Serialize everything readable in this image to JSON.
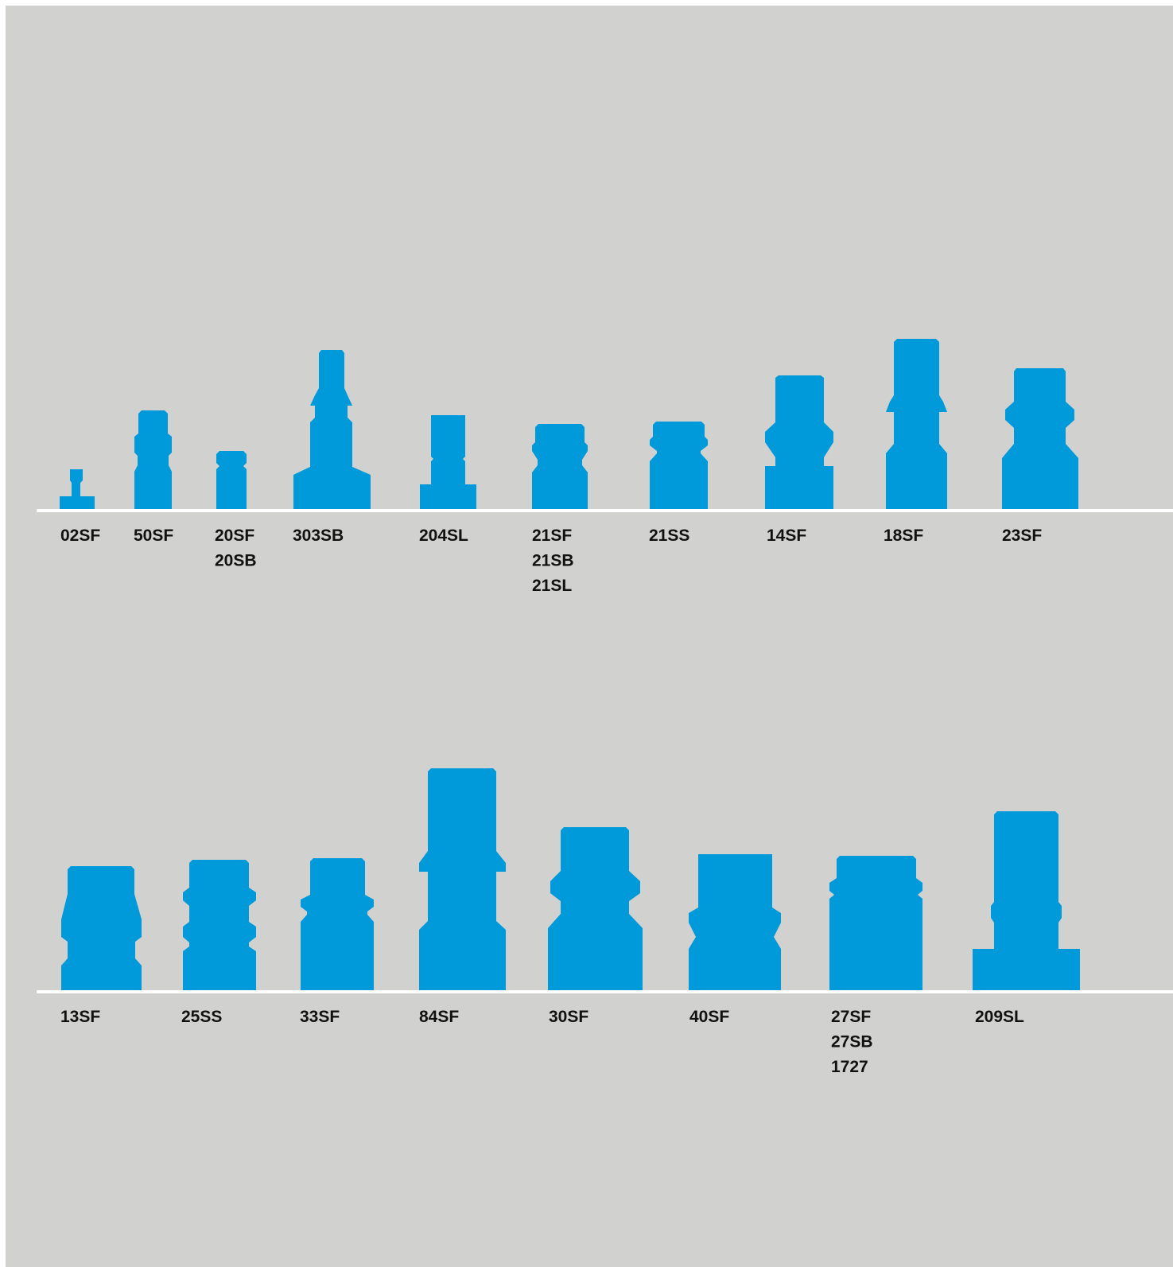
{
  "colors": {
    "background": "#d1d1cf",
    "page_border": "#ffffff",
    "fitting": "#009ada",
    "baseline": "#ffffff",
    "label_text": "#111111"
  },
  "rows": [
    {
      "items": [
        {
          "labels": [
            "02SF"
          ]
        },
        {
          "labels": [
            "50SF"
          ]
        },
        {
          "labels": [
            "20SF",
            "20SB"
          ]
        },
        {
          "labels": [
            "303SB"
          ]
        },
        {
          "labels": [
            "204SL"
          ]
        },
        {
          "labels": [
            "21SF",
            "21SB",
            "21SL"
          ]
        },
        {
          "labels": [
            "21SS"
          ]
        },
        {
          "labels": [
            "14SF"
          ]
        },
        {
          "labels": [
            "18SF"
          ]
        },
        {
          "labels": [
            "23SF"
          ]
        }
      ]
    },
    {
      "items": [
        {
          "labels": [
            "13SF"
          ]
        },
        {
          "labels": [
            "25SS"
          ]
        },
        {
          "labels": [
            "33SF"
          ]
        },
        {
          "labels": [
            "84SF"
          ]
        },
        {
          "labels": [
            "30SF"
          ]
        },
        {
          "labels": [
            "40SF"
          ]
        },
        {
          "labels": [
            "27SF",
            "27SB",
            "1727"
          ]
        },
        {
          "labels": [
            "209SL"
          ]
        }
      ]
    }
  ]
}
